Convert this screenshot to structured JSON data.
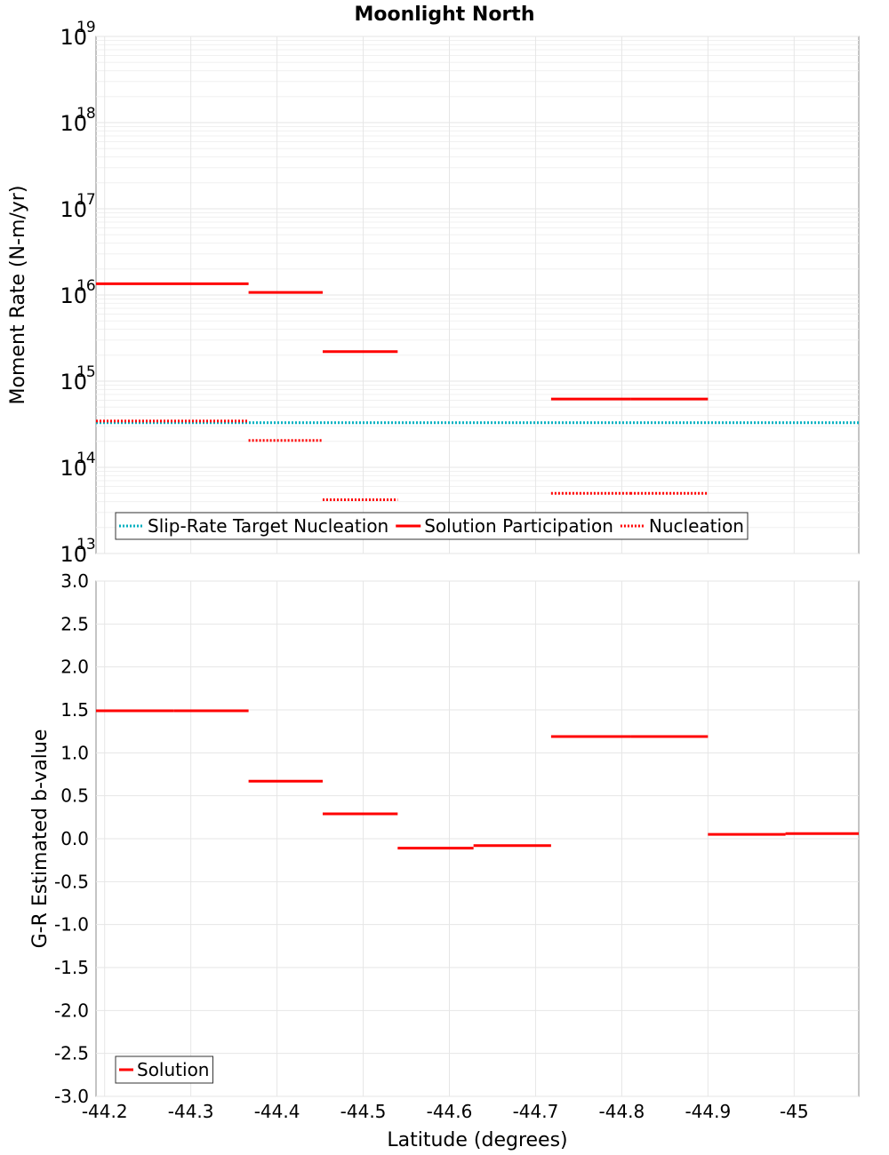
{
  "title": "Moonlight North",
  "chart_data": [
    {
      "type": "line",
      "title": "Moonlight North",
      "ylabel": "Moment Rate (N-m/yr)",
      "yscale": "log",
      "ylim": [
        10000000000000.0,
        1e+19
      ],
      "xlim": [
        -44.19,
        -45.075
      ],
      "y_tick_exponents": [
        "13",
        "14",
        "15",
        "16",
        "17",
        "18",
        "19"
      ],
      "grid": true,
      "legend_position": "bottom-left",
      "legend": [
        "Slip-Rate Target Nucleation",
        "Solution Participation",
        "Nucleation"
      ],
      "series": [
        {
          "name": "Slip-Rate Target Nucleation",
          "style": "dotted",
          "color": "#00b0c0",
          "segments": [
            {
              "x": [
                -44.19,
                -45.075
              ],
              "y": 330000000000000.0
            }
          ]
        },
        {
          "name": "Solution Participation",
          "style": "solid",
          "color": "#ff0000",
          "segments": [
            {
              "x": [
                -44.19,
                -44.367
              ],
              "y": 1.35e+16
            },
            {
              "x": [
                -44.367,
                -44.453
              ],
              "y": 1.07e+16
            },
            {
              "x": [
                -44.453,
                -44.54
              ],
              "y": 2200000000000000.0
            },
            {
              "x": [
                -44.718,
                -44.81
              ],
              "y": 620000000000000.0
            },
            {
              "x": [
                -44.81,
                -44.9
              ],
              "y": 620000000000000.0
            }
          ]
        },
        {
          "name": "Nucleation",
          "style": "dotted",
          "color": "#ff0000",
          "segments": [
            {
              "x": [
                -44.19,
                -44.367
              ],
              "y": 345000000000000.0
            },
            {
              "x": [
                -44.367,
                -44.453
              ],
              "y": 205000000000000.0
            },
            {
              "x": [
                -44.453,
                -44.54
              ],
              "y": 42000000000000.0
            },
            {
              "x": [
                -44.718,
                -44.81
              ],
              "y": 50000000000000.0
            },
            {
              "x": [
                -44.81,
                -44.9
              ],
              "y": 50000000000000.0
            }
          ]
        }
      ]
    },
    {
      "type": "line",
      "xlabel": "Latitude (degrees)",
      "ylabel": "G-R Estimated b-value",
      "ylim": [
        -3.0,
        3.0
      ],
      "xlim": [
        -44.19,
        -45.075
      ],
      "y_ticks": [
        "3.0",
        "2.5",
        "2.0",
        "1.5",
        "1.0",
        "0.5",
        "0.0",
        "-0.5",
        "-1.0",
        "-1.5",
        "-2.0",
        "-2.5",
        "-3.0"
      ],
      "x_ticks": [
        "-44.2",
        "-44.3",
        "-44.4",
        "-44.5",
        "-44.6",
        "-44.7",
        "-44.8",
        "-44.9",
        "-45"
      ],
      "grid": true,
      "legend_position": "bottom-left",
      "legend": [
        "Solution"
      ],
      "series": [
        {
          "name": "Solution",
          "style": "solid",
          "color": "#ff0000",
          "segments": [
            {
              "x": [
                -44.19,
                -44.28
              ],
              "y": 1.49
            },
            {
              "x": [
                -44.28,
                -44.367
              ],
              "y": 1.49
            },
            {
              "x": [
                -44.367,
                -44.453
              ],
              "y": 0.67
            },
            {
              "x": [
                -44.453,
                -44.54
              ],
              "y": 0.29
            },
            {
              "x": [
                -44.54,
                -44.628
              ],
              "y": -0.11
            },
            {
              "x": [
                -44.628,
                -44.718
              ],
              "y": -0.08
            },
            {
              "x": [
                -44.718,
                -44.81
              ],
              "y": 1.19
            },
            {
              "x": [
                -44.81,
                -44.9
              ],
              "y": 1.19
            },
            {
              "x": [
                -44.9,
                -44.99
              ],
              "y": 0.05
            },
            {
              "x": [
                -44.99,
                -45.075
              ],
              "y": 0.06
            }
          ]
        }
      ]
    }
  ]
}
